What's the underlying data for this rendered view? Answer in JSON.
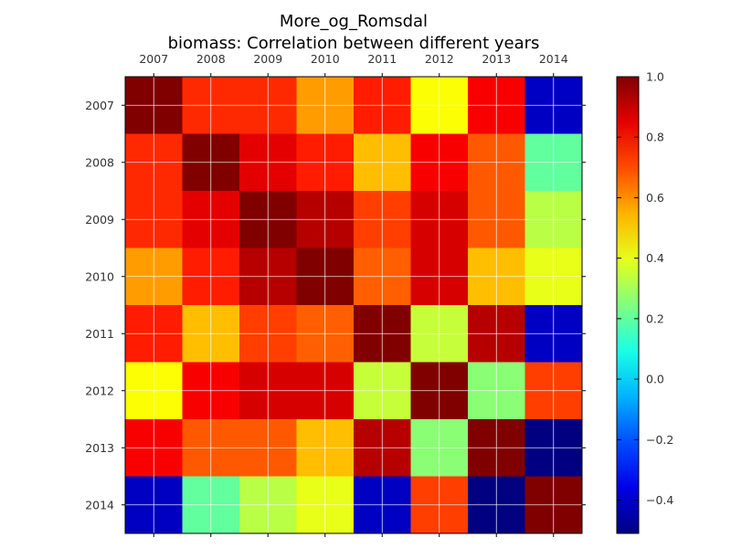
{
  "chart_data": {
    "type": "heatmap",
    "title": "More_og_Romsdal",
    "subtitle": "biomass: Correlation between different years",
    "x_labels": [
      "2007",
      "2008",
      "2009",
      "2010",
      "2011",
      "2012",
      "2013",
      "2014"
    ],
    "y_labels": [
      "2007",
      "2008",
      "2009",
      "2010",
      "2011",
      "2012",
      "2013",
      "2014"
    ],
    "values": [
      [
        1.0,
        0.75,
        0.75,
        0.58,
        0.77,
        0.43,
        0.82,
        -0.41
      ],
      [
        0.75,
        1.0,
        0.85,
        0.77,
        0.53,
        0.82,
        0.68,
        0.2
      ],
      [
        0.75,
        0.85,
        1.0,
        0.92,
        0.72,
        0.87,
        0.68,
        0.33
      ],
      [
        0.58,
        0.77,
        0.92,
        1.0,
        0.67,
        0.87,
        0.53,
        0.4
      ],
      [
        0.77,
        0.53,
        0.72,
        0.67,
        1.0,
        0.35,
        0.92,
        -0.41
      ],
      [
        0.43,
        0.82,
        0.87,
        0.87,
        0.35,
        1.0,
        0.26,
        0.72
      ],
      [
        0.82,
        0.68,
        0.68,
        0.53,
        0.92,
        0.26,
        1.0,
        -0.51
      ],
      [
        -0.41,
        0.2,
        0.33,
        0.4,
        -0.41,
        0.72,
        -0.51,
        1.0
      ]
    ],
    "vmin": -0.51,
    "vmax": 1.0,
    "colormap": "jet",
    "colorbar_ticks": [
      "1.0",
      "0.8",
      "0.6",
      "0.4",
      "0.2",
      "0.0",
      "−0.2",
      "−0.4"
    ],
    "grid": true
  }
}
